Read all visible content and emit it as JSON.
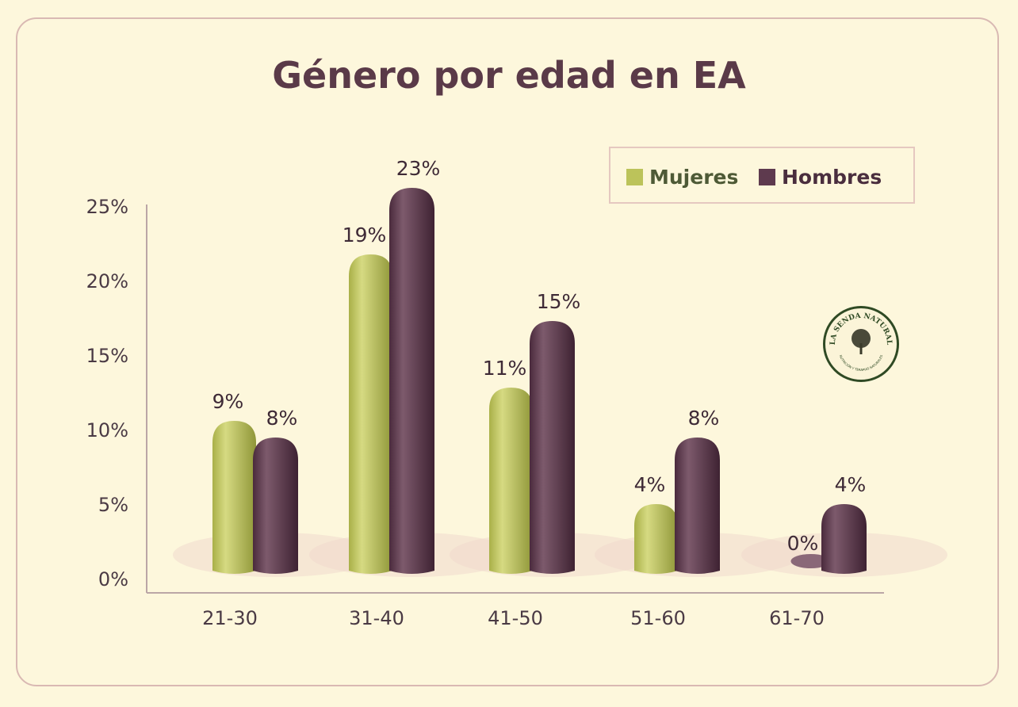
{
  "chart_data": {
    "type": "bar",
    "title": "Género por edad en EA",
    "categories": [
      "21-30",
      "31-40",
      "41-50",
      "51-60",
      "61-70"
    ],
    "series": [
      {
        "name": "Mujeres",
        "values": [
          9,
          19,
          11,
          4,
          0
        ],
        "labels": [
          "9%",
          "19%",
          "11%",
          "4%",
          "0%"
        ],
        "color": "#bcc35a"
      },
      {
        "name": "Hombres",
        "values": [
          8,
          23,
          15,
          8,
          4
        ],
        "labels": [
          "8%",
          "23%",
          "15%",
          "8%",
          "4%"
        ],
        "color": "#5e3a4e"
      }
    ],
    "yticks": [
      "0%",
      "5%",
      "10%",
      "15%",
      "20%",
      "25%"
    ],
    "ylim": [
      0,
      25
    ],
    "legend": "top-right",
    "grid": false
  },
  "logo": {
    "text": "LA SENDA NATURAL",
    "subtext": "NUTRICIÓN Y TERAPIAS NATURALES"
  }
}
